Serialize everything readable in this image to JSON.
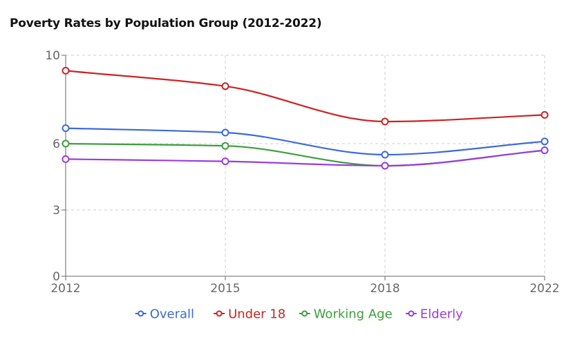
{
  "chart_data": {
    "type": "line",
    "title": "Poverty Rates by Population Group (2012-2022)",
    "xlabel": "",
    "ylabel": "",
    "categories": [
      "2012",
      "2015",
      "2018",
      "2022"
    ],
    "y_ticks": [
      "0",
      "3",
      "6",
      "10"
    ],
    "ylim": [
      0,
      10
    ],
    "grid": true,
    "legend_position": "bottom",
    "series": [
      {
        "name": "Overall",
        "color": "#3b68e0",
        "values": [
          6.7,
          6.5,
          5.5,
          6.1
        ]
      },
      {
        "name": "Under 18",
        "color": "#cc2222",
        "values": [
          9.3,
          8.6,
          7.0,
          7.3
        ]
      },
      {
        "name": "Working Age",
        "color": "#3b9e3b",
        "values": [
          6.0,
          5.9,
          5.0,
          5.7
        ]
      },
      {
        "name": "Elderly",
        "color": "#9a3be0",
        "values": [
          5.3,
          5.2,
          5.0,
          5.7
        ]
      }
    ]
  }
}
